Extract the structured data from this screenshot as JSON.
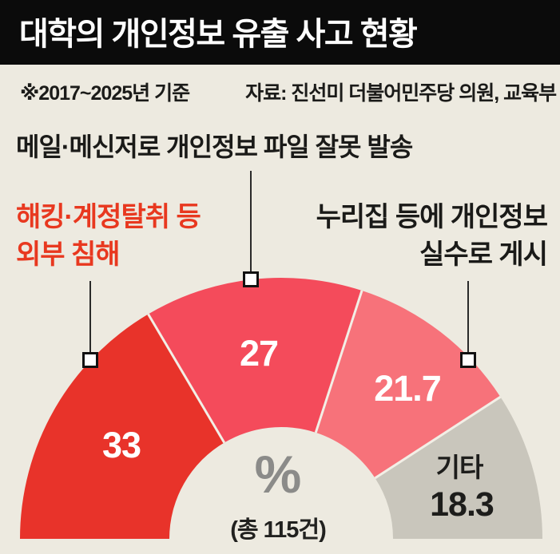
{
  "header": {
    "title": "대학의 개인정보 유출 사고 현황"
  },
  "note": {
    "basis": "※2017~2025년 기준",
    "source": "자료: 진선미 더불어민주당 의원, 교육부"
  },
  "callouts": {
    "mail": {
      "line1": "메일·메신저로 개인정보 파일 잘못 발송",
      "color": "#1a1a18"
    },
    "hack": {
      "line1": "해킹·계정탈취 등",
      "line2": "외부 침해",
      "color": "#e8381f"
    },
    "web": {
      "line1": "누리집 등에 개인정보",
      "line2": "실수로 게시",
      "color": "#1a1a18"
    }
  },
  "chart_data": {
    "type": "donut",
    "shape": "semicircle",
    "unit": "%",
    "total": 115,
    "center": {
      "unit_symbol": "%",
      "total_label": "(총 115건)"
    },
    "segments": [
      {
        "name": "해킹·계정탈취 등 외부 침해",
        "value": 33,
        "display": "33",
        "color": "#e8332a",
        "label_color": "#ffffff"
      },
      {
        "name": "메일·메신저로 개인정보 파일 잘못 발송",
        "value": 27,
        "display": "27",
        "color": "#f44b5b",
        "label_color": "#ffffff"
      },
      {
        "name": "누리집 등에 개인정보 실수로 게시",
        "value": 21.7,
        "display": "21.7",
        "color": "#f7727a",
        "label_color": "#ffffff"
      },
      {
        "name": "기타",
        "value": 18.3,
        "display": "18.3",
        "color": "#c9c6bc",
        "label_color": "#1d1d1b",
        "name_label": "기타"
      }
    ],
    "colors": {
      "background": "#edeae0",
      "divider": "#f2efe6",
      "header_bg": "#0b0b0b",
      "header_text": "#ffffff",
      "center_unit": "#8b8b89",
      "center_total": "#21211f",
      "marker_border": "#111111",
      "marker_fill": "#ffffff",
      "leader_line": "#2a2a2a"
    }
  }
}
